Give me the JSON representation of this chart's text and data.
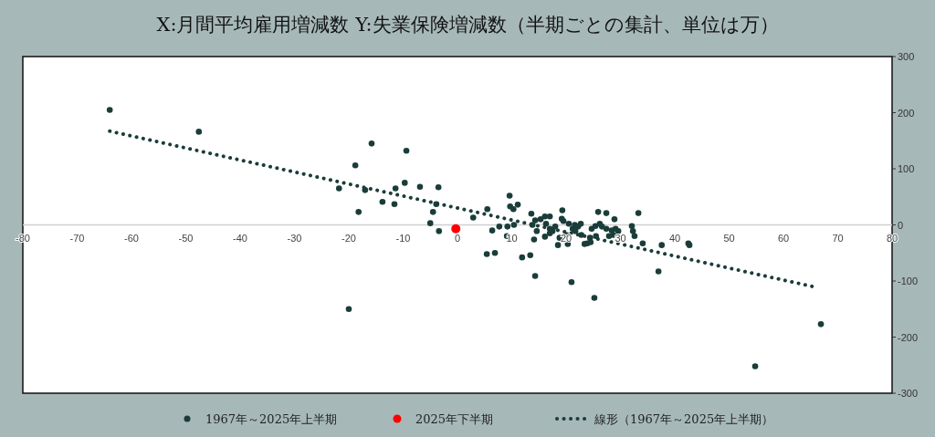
{
  "chart_data": {
    "type": "scatter",
    "title": "X:月間平均雇用増減数 Y:失業保険増減数（半期ごとの集計、単位は万）",
    "xlim": [
      -80,
      80
    ],
    "xticks": [
      -80,
      -70,
      -60,
      -50,
      -40,
      -30,
      -20,
      -10,
      0,
      10,
      20,
      30,
      40,
      50,
      60,
      70,
      80
    ],
    "ylim": [
      -300,
      300
    ],
    "yticks": [
      -300,
      -200,
      -100,
      0,
      100,
      200,
      300
    ],
    "legend": "bottom",
    "marker": "circle",
    "grid": false,
    "series": [
      {
        "name": "1967年～2025年上半期",
        "color": "#1a3d3a",
        "x": [
          -64,
          -47.6,
          -21.8,
          -18.8,
          -18.2,
          -17,
          -15.8,
          -13.8,
          -11.4,
          -11.6,
          -9.7,
          -9.4,
          -6.9,
          -3.5,
          -3.9,
          -4.5,
          -5,
          -3.4,
          2.9,
          -20,
          5.5,
          6.4,
          7.7,
          9.2,
          10.4,
          9.1,
          5.4,
          6.9,
          11.9,
          13.4,
          14.3,
          21,
          25.2,
          9.6,
          9.7,
          10.3,
          11.1,
          13.6,
          13.8,
          14.1,
          14.6,
          14.3,
          15.3,
          16.1,
          17,
          16.3,
          16.1,
          17,
          17.5,
          18,
          17,
          18.5,
          18.8,
          19.3,
          19.2,
          19.5,
          20,
          20.3,
          20.5,
          21.2,
          21.7,
          21.6,
          22.2,
          22.7,
          22.8,
          23.4,
          23.9,
          24.4,
          24.5,
          24.7,
          25.4,
          25.5,
          25.9,
          26.2,
          26.6,
          27.4,
          27.4,
          27.9,
          28.4,
          28.7,
          28.9,
          29.1,
          29.6,
          32.1,
          32.3,
          32.6,
          33.3,
          34.1,
          37.6,
          37,
          42.5,
          42.7,
          54.8,
          66.9
        ],
        "values": [
          205,
          166,
          65,
          106,
          23,
          62,
          145,
          41,
          65,
          37,
          75,
          132,
          68,
          67,
          37,
          23,
          3,
          -11,
          13,
          -150,
          28,
          -10,
          -3,
          -3,
          0,
          -20,
          -52,
          -50,
          -58,
          -54,
          -91,
          -102,
          -130,
          52,
          33,
          28,
          36,
          20,
          0,
          -26,
          -11,
          8,
          10,
          15,
          15,
          2,
          -21,
          -7,
          -11,
          -3,
          -15,
          -36,
          -23,
          26,
          11,
          7,
          -18,
          -34,
          2,
          -7,
          -11,
          0,
          -3,
          2,
          -18,
          -34,
          -33,
          -23,
          -31,
          -7,
          -2,
          -20,
          23,
          2,
          -3,
          21,
          -7,
          -20,
          -10,
          -18,
          10,
          -7,
          -11,
          -2,
          -11,
          -20,
          21,
          -33,
          -36,
          -83,
          -33,
          -36,
          -252,
          -177
        ]
      },
      {
        "name": "2025年下半期",
        "color": "#ff0000",
        "x": [
          -0.3
        ],
        "values": [
          -7
        ]
      },
      {
        "name": "線形（1967年～2025年上半期）",
        "color": "#1a3d3a",
        "type": "line",
        "line_style": "dotted",
        "marker": "none",
        "x": [
          -64,
          65.9
        ],
        "values": [
          167,
          -111
        ]
      }
    ]
  }
}
